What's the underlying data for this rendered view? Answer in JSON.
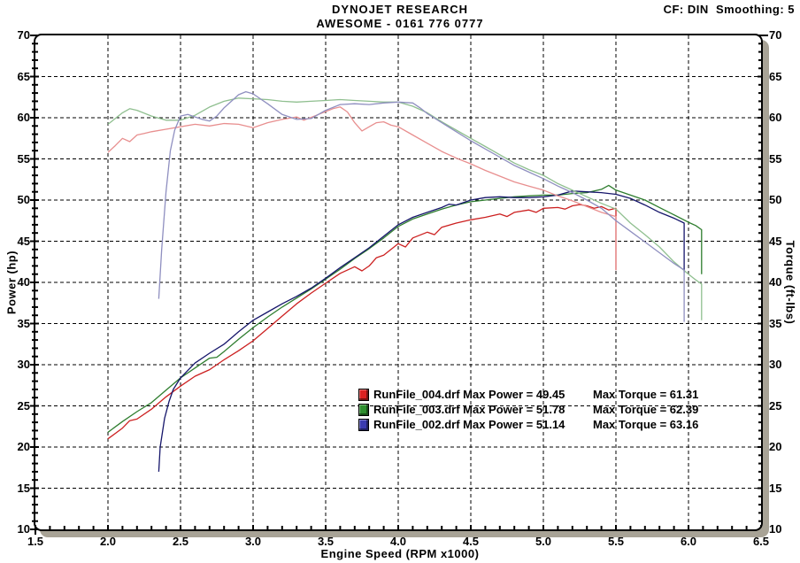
{
  "header": {
    "title_line1": "DYNOJET RESEARCH",
    "title_line2": "AWESOME - 0161 776 0777",
    "cf_label": "CF: DIN  Smoothing: 5"
  },
  "chart_data": {
    "type": "line",
    "title": "DYNOJET RESEARCH",
    "subtitle": "AWESOME - 0161 776 0777",
    "xlabel": "Engine Speed (RPM x1000)",
    "ylabel_left": "Power (hp)",
    "ylabel_right": "Torque (ft-lbs)",
    "xlim": [
      1.5,
      6.5
    ],
    "ylim": [
      10,
      70
    ],
    "x_major_ticks": [
      "1.5",
      "2.0",
      "2.5",
      "3.0",
      "3.5",
      "4.0",
      "4.5",
      "5.0",
      "5.5",
      "6.0",
      "6.5"
    ],
    "x_minor_step": 0.1,
    "y_major_ticks": [
      10,
      15,
      20,
      25,
      30,
      35,
      40,
      45,
      50,
      55,
      60,
      65,
      70
    ],
    "y_minor_step": 1,
    "grid_style": "dashed",
    "legend": {
      "rows": [
        {
          "file": "RunFile_004.drf",
          "max_power": "49.45",
          "max_torque": "61.31",
          "label_left": "RunFile_004.drf Max Power = 49.45",
          "label_right": "Max Torque = 61.31",
          "color": "#dd2222"
        },
        {
          "file": "RunFile_003.drf",
          "max_power": "51.78",
          "max_torque": "62.39",
          "label_left": "RunFile_003.drf Max Power = 51.78",
          "label_right": "Max Torque = 62.39",
          "color": "#2f8f2f"
        },
        {
          "file": "RunFile_002.drf",
          "max_power": "51.14",
          "max_torque": "63.16",
          "label_left": "RunFile_002.drf Max Power = 51.14",
          "label_right": "Max Torque = 63.16",
          "color": "#3b3bb0"
        }
      ]
    },
    "series": [
      {
        "name": "RunFile_004-power",
        "axis": "power",
        "color": "#cc2020",
        "points": [
          [
            2.0,
            21
          ],
          [
            2.1,
            22.3
          ],
          [
            2.15,
            23.2
          ],
          [
            2.2,
            23.4
          ],
          [
            2.3,
            24.6
          ],
          [
            2.4,
            26.1
          ],
          [
            2.5,
            27.4
          ],
          [
            2.6,
            28.6
          ],
          [
            2.7,
            29.4
          ],
          [
            2.8,
            30.6
          ],
          [
            2.9,
            31.7
          ],
          [
            3.0,
            32.9
          ],
          [
            3.1,
            34.4
          ],
          [
            3.2,
            35.9
          ],
          [
            3.3,
            37.4
          ],
          [
            3.4,
            38.7
          ],
          [
            3.5,
            39.9
          ],
          [
            3.6,
            41.1
          ],
          [
            3.7,
            41.9
          ],
          [
            3.75,
            41.4
          ],
          [
            3.8,
            42.0
          ],
          [
            3.85,
            43.0
          ],
          [
            3.9,
            43.3
          ],
          [
            4.0,
            44.7
          ],
          [
            4.05,
            44.3
          ],
          [
            4.1,
            45.4
          ],
          [
            4.2,
            46.1
          ],
          [
            4.25,
            45.8
          ],
          [
            4.3,
            46.7
          ],
          [
            4.4,
            47.2
          ],
          [
            4.5,
            47.6
          ],
          [
            4.6,
            47.9
          ],
          [
            4.7,
            48.3
          ],
          [
            4.75,
            48.0
          ],
          [
            4.8,
            48.5
          ],
          [
            4.9,
            48.8
          ],
          [
            4.95,
            48.5
          ],
          [
            5.0,
            49.0
          ],
          [
            5.1,
            49.1
          ],
          [
            5.15,
            48.9
          ],
          [
            5.2,
            49.3
          ],
          [
            5.25,
            49.45
          ],
          [
            5.3,
            49.3
          ],
          [
            5.35,
            49.0
          ],
          [
            5.4,
            49.2
          ],
          [
            5.45,
            48.8
          ],
          [
            5.5,
            49.0
          ],
          [
            5.5,
            41.5
          ]
        ]
      },
      {
        "name": "RunFile_003-power",
        "axis": "power",
        "color": "#2e7d2e",
        "points": [
          [
            2.0,
            21.8
          ],
          [
            2.1,
            23.1
          ],
          [
            2.2,
            24.3
          ],
          [
            2.3,
            25.4
          ],
          [
            2.4,
            26.9
          ],
          [
            2.5,
            28.4
          ],
          [
            2.6,
            29.6
          ],
          [
            2.7,
            30.8
          ],
          [
            2.75,
            30.9
          ],
          [
            2.8,
            31.6
          ],
          [
            2.9,
            33.1
          ],
          [
            3.0,
            34.5
          ],
          [
            3.1,
            35.8
          ],
          [
            3.2,
            37.0
          ],
          [
            3.3,
            38.1
          ],
          [
            3.4,
            39.2
          ],
          [
            3.5,
            40.4
          ],
          [
            3.6,
            41.6
          ],
          [
            3.7,
            42.9
          ],
          [
            3.8,
            44.1
          ],
          [
            3.9,
            45.4
          ],
          [
            4.0,
            46.8
          ],
          [
            4.1,
            47.7
          ],
          [
            4.2,
            48.3
          ],
          [
            4.3,
            48.9
          ],
          [
            4.4,
            49.4
          ],
          [
            4.5,
            49.8
          ],
          [
            4.6,
            50.0
          ],
          [
            4.7,
            50.2
          ],
          [
            4.8,
            50.4
          ],
          [
            4.9,
            50.5
          ],
          [
            5.0,
            50.6
          ],
          [
            5.1,
            50.6
          ],
          [
            5.2,
            50.8
          ],
          [
            5.3,
            50.9
          ],
          [
            5.4,
            51.3
          ],
          [
            5.45,
            51.78
          ],
          [
            5.5,
            51.2
          ],
          [
            5.6,
            50.6
          ],
          [
            5.7,
            50.0
          ],
          [
            5.8,
            49.1
          ],
          [
            5.9,
            48.2
          ],
          [
            6.0,
            47.3
          ],
          [
            6.05,
            46.9
          ],
          [
            6.09,
            46.4
          ],
          [
            6.09,
            41.0
          ]
        ]
      },
      {
        "name": "RunFile_002-power",
        "axis": "power",
        "color": "#16166b",
        "points": [
          [
            2.35,
            17
          ],
          [
            2.36,
            20
          ],
          [
            2.39,
            23.5
          ],
          [
            2.42,
            25.5
          ],
          [
            2.45,
            27.0
          ],
          [
            2.5,
            28.4
          ],
          [
            2.6,
            30.2
          ],
          [
            2.7,
            31.4
          ],
          [
            2.8,
            32.5
          ],
          [
            2.9,
            34.0
          ],
          [
            3.0,
            35.4
          ],
          [
            3.1,
            36.4
          ],
          [
            3.2,
            37.4
          ],
          [
            3.3,
            38.3
          ],
          [
            3.4,
            39.3
          ],
          [
            3.5,
            40.5
          ],
          [
            3.6,
            41.8
          ],
          [
            3.7,
            43.0
          ],
          [
            3.8,
            44.2
          ],
          [
            3.9,
            45.6
          ],
          [
            4.0,
            47.0
          ],
          [
            4.1,
            47.9
          ],
          [
            4.2,
            48.5
          ],
          [
            4.3,
            49.1
          ],
          [
            4.35,
            49.5
          ],
          [
            4.4,
            49.4
          ],
          [
            4.5,
            50.0
          ],
          [
            4.6,
            50.3
          ],
          [
            4.7,
            50.4
          ],
          [
            4.8,
            50.3
          ],
          [
            4.9,
            50.3
          ],
          [
            5.0,
            50.4
          ],
          [
            5.1,
            50.6
          ],
          [
            5.2,
            51.1
          ],
          [
            5.3,
            51.0
          ],
          [
            5.4,
            50.9
          ],
          [
            5.5,
            50.7
          ],
          [
            5.6,
            50.2
          ],
          [
            5.7,
            49.4
          ],
          [
            5.8,
            48.5
          ],
          [
            5.9,
            47.8
          ],
          [
            5.97,
            47.2
          ],
          [
            5.97,
            41.2
          ]
        ]
      },
      {
        "name": "RunFile_004-torque",
        "axis": "torque",
        "color": "#e88f8f",
        "points": [
          [
            2.0,
            55.8
          ],
          [
            2.05,
            56.6
          ],
          [
            2.1,
            57.5
          ],
          [
            2.15,
            57.1
          ],
          [
            2.2,
            57.9
          ],
          [
            2.25,
            58.1
          ],
          [
            2.3,
            58.3
          ],
          [
            2.4,
            58.6
          ],
          [
            2.5,
            58.9
          ],
          [
            2.6,
            59.2
          ],
          [
            2.7,
            59.0
          ],
          [
            2.8,
            59.3
          ],
          [
            2.9,
            59.2
          ],
          [
            3.0,
            58.8
          ],
          [
            3.1,
            59.4
          ],
          [
            3.2,
            59.8
          ],
          [
            3.3,
            60.1
          ],
          [
            3.35,
            59.7
          ],
          [
            3.45,
            60.4
          ],
          [
            3.55,
            61.1
          ],
          [
            3.6,
            61.31
          ],
          [
            3.65,
            60.7
          ],
          [
            3.7,
            59.4
          ],
          [
            3.75,
            58.4
          ],
          [
            3.8,
            58.9
          ],
          [
            3.85,
            59.4
          ],
          [
            3.9,
            59.5
          ],
          [
            3.95,
            59.1
          ],
          [
            4.0,
            58.9
          ],
          [
            4.1,
            57.9
          ],
          [
            4.2,
            56.9
          ],
          [
            4.3,
            55.9
          ],
          [
            4.4,
            55.1
          ],
          [
            4.5,
            54.4
          ],
          [
            4.6,
            53.6
          ],
          [
            4.7,
            52.9
          ],
          [
            4.8,
            52.2
          ],
          [
            4.9,
            51.7
          ],
          [
            5.0,
            51.2
          ],
          [
            5.1,
            50.5
          ],
          [
            5.2,
            49.9
          ],
          [
            5.3,
            49.2
          ],
          [
            5.4,
            48.5
          ],
          [
            5.5,
            48.0
          ],
          [
            5.5,
            41.5
          ]
        ]
      },
      {
        "name": "RunFile_003-torque",
        "axis": "torque",
        "color": "#8fbf8f",
        "points": [
          [
            2.0,
            59.2
          ],
          [
            2.05,
            59.9
          ],
          [
            2.1,
            60.6
          ],
          [
            2.15,
            61.1
          ],
          [
            2.2,
            60.9
          ],
          [
            2.3,
            60.2
          ],
          [
            2.4,
            59.7
          ],
          [
            2.5,
            59.7
          ],
          [
            2.6,
            60.3
          ],
          [
            2.7,
            61.3
          ],
          [
            2.8,
            62.0
          ],
          [
            2.9,
            62.39
          ],
          [
            3.0,
            62.3
          ],
          [
            3.1,
            62.2
          ],
          [
            3.2,
            62.0
          ],
          [
            3.3,
            61.9
          ],
          [
            3.4,
            62.0
          ],
          [
            3.5,
            62.1
          ],
          [
            3.6,
            62.2
          ],
          [
            3.7,
            62.1
          ],
          [
            3.8,
            62.0
          ],
          [
            3.9,
            61.9
          ],
          [
            4.0,
            61.9
          ],
          [
            4.1,
            61.4
          ],
          [
            4.2,
            60.6
          ],
          [
            4.3,
            59.5
          ],
          [
            4.4,
            58.5
          ],
          [
            4.5,
            57.5
          ],
          [
            4.6,
            56.5
          ],
          [
            4.7,
            55.5
          ],
          [
            4.8,
            54.5
          ],
          [
            4.9,
            53.7
          ],
          [
            5.0,
            53.0
          ],
          [
            5.1,
            52.0
          ],
          [
            5.2,
            51.2
          ],
          [
            5.3,
            50.4
          ],
          [
            5.4,
            49.6
          ],
          [
            5.5,
            48.9
          ],
          [
            5.6,
            47.2
          ],
          [
            5.7,
            45.8
          ],
          [
            5.8,
            44.3
          ],
          [
            5.9,
            42.5
          ],
          [
            6.0,
            41.0
          ],
          [
            6.05,
            40.3
          ],
          [
            6.09,
            39.8
          ],
          [
            6.09,
            35.4
          ]
        ]
      },
      {
        "name": "RunFile_002-torque",
        "axis": "torque",
        "color": "#8f8fc0",
        "points": [
          [
            2.35,
            38.0
          ],
          [
            2.37,
            44.0
          ],
          [
            2.4,
            51.0
          ],
          [
            2.43,
            56.0
          ],
          [
            2.46,
            58.5
          ],
          [
            2.5,
            60.2
          ],
          [
            2.55,
            60.4
          ],
          [
            2.6,
            60.1
          ],
          [
            2.65,
            59.8
          ],
          [
            2.7,
            59.6
          ],
          [
            2.75,
            60.2
          ],
          [
            2.8,
            61.2
          ],
          [
            2.9,
            62.8
          ],
          [
            2.95,
            63.16
          ],
          [
            3.0,
            62.9
          ],
          [
            3.05,
            62.3
          ],
          [
            3.1,
            61.7
          ],
          [
            3.2,
            60.4
          ],
          [
            3.3,
            59.8
          ],
          [
            3.4,
            59.9
          ],
          [
            3.5,
            60.9
          ],
          [
            3.6,
            61.6
          ],
          [
            3.7,
            61.7
          ],
          [
            3.8,
            61.6
          ],
          [
            3.9,
            61.8
          ],
          [
            4.0,
            61.9
          ],
          [
            4.1,
            61.8
          ],
          [
            4.15,
            61.2
          ],
          [
            4.2,
            60.5
          ],
          [
            4.3,
            59.4
          ],
          [
            4.4,
            58.3
          ],
          [
            4.5,
            57.2
          ],
          [
            4.6,
            56.2
          ],
          [
            4.7,
            55.2
          ],
          [
            4.8,
            54.2
          ],
          [
            4.9,
            53.4
          ],
          [
            5.0,
            52.6
          ],
          [
            5.1,
            51.7
          ],
          [
            5.2,
            50.9
          ],
          [
            5.3,
            50.0
          ],
          [
            5.4,
            49.0
          ],
          [
            5.5,
            47.5
          ],
          [
            5.6,
            46.2
          ],
          [
            5.7,
            44.9
          ],
          [
            5.8,
            43.6
          ],
          [
            5.9,
            42.3
          ],
          [
            5.97,
            41.5
          ],
          [
            5.97,
            35.2
          ]
        ]
      }
    ]
  }
}
